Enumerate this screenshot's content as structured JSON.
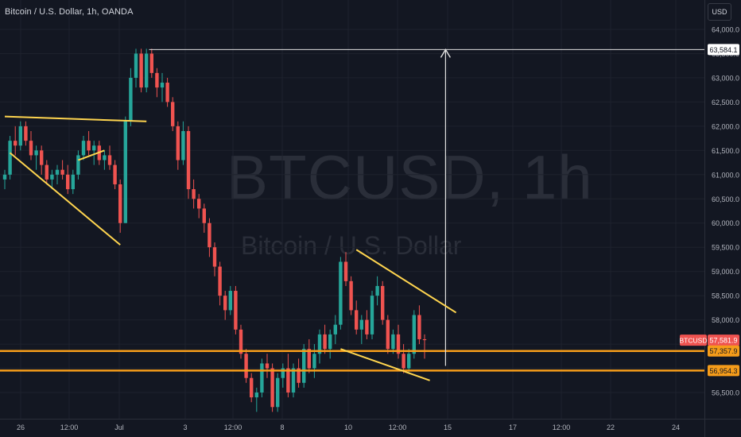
{
  "header": {
    "title": "Bitcoin / U.S. Dollar, 1h, OANDA",
    "currency": "USD"
  },
  "watermark": {
    "symbol": "BTCUSD, 1h",
    "description": "Bitcoin / U.S. Dollar"
  },
  "colors": {
    "background": "#131722",
    "grid": "#1e222d",
    "up": "#26a69a",
    "down": "#ef5350",
    "trendline": "#ffd54f",
    "horizontal_level": "#f59c1a",
    "measure_line": "#e0e0e0",
    "axis_text": "#b2b5be"
  },
  "chart_data": {
    "type": "candlestick",
    "symbol": "BTCUSD",
    "interval": "1h",
    "ylim": [
      56000,
      64500
    ],
    "y_ticks": [
      56500,
      57000,
      57500,
      58000,
      58500,
      59000,
      59500,
      60000,
      60500,
      61000,
      61500,
      62000,
      62500,
      63000,
      63500,
      64000
    ],
    "y_tick_labels": [
      "56,500.0",
      "57,000.0",
      "57,500.0",
      "58,000.0",
      "58,500.0",
      "59,000.0",
      "59,500.0",
      "60,000.0",
      "60,500.0",
      "61,000.0",
      "61,500.0",
      "62,000.0",
      "62,500.0",
      "63,000.0",
      "63,500.0",
      "64,000.0"
    ],
    "x_labels": [
      "26",
      "12:00",
      "Jul",
      "3",
      "12:00",
      "8",
      "10",
      "12:00",
      "15",
      "17",
      "12:00",
      "22",
      "24"
    ],
    "grid": true,
    "last_price": {
      "symbol": "BTCUSD",
      "value": 57581.9,
      "label": "57,581.9"
    },
    "levels": [
      {
        "value": 63584.1,
        "label": "63,584.1",
        "type": "measure_target"
      },
      {
        "value": 57357.9,
        "label": "57,357.9",
        "type": "support"
      },
      {
        "value": 56954.3,
        "label": "56,954.3",
        "type": "support"
      }
    ],
    "trendlines": [
      {
        "x1": 0.0,
        "y1": 62200,
        "x2": 27.0,
        "y2": 62100
      },
      {
        "x1": 1.0,
        "y1": 61450,
        "x2": 22.0,
        "y2": 59550
      },
      {
        "x1": 14.0,
        "y1": 61300,
        "x2": 19.0,
        "y2": 61500
      },
      {
        "x1": 67.0,
        "y1": 59450,
        "x2": 86.0,
        "y2": 58150
      },
      {
        "x1": 64.0,
        "y1": 57400,
        "x2": 81.0,
        "y2": 56750
      }
    ],
    "measure_arrow": {
      "x": 84.0,
      "from": 57050,
      "to": 63584.1,
      "top_from_x": 27.5
    },
    "candles_ohlc": [
      [
        60900,
        61100,
        60700,
        61000
      ],
      [
        61000,
        61800,
        60900,
        61700
      ],
      [
        61700,
        62000,
        61400,
        61600
      ],
      [
        61600,
        62100,
        61500,
        62000
      ],
      [
        62000,
        62100,
        61600,
        61700
      ],
      [
        61700,
        61900,
        61300,
        61400
      ],
      [
        61400,
        61600,
        61100,
        61500
      ],
      [
        61500,
        61600,
        61000,
        61200
      ],
      [
        61200,
        61300,
        60800,
        60900
      ],
      [
        60900,
        61100,
        60700,
        61000
      ],
      [
        61000,
        61200,
        60800,
        61100
      ],
      [
        61100,
        61300,
        60900,
        61000
      ],
      [
        61000,
        61200,
        60600,
        60700
      ],
      [
        60700,
        61100,
        60600,
        61000
      ],
      [
        61000,
        61500,
        60900,
        61400
      ],
      [
        61400,
        61800,
        61300,
        61700
      ],
      [
        61700,
        61900,
        61400,
        61500
      ],
      [
        61500,
        61700,
        61200,
        61600
      ],
      [
        61600,
        61700,
        61200,
        61300
      ],
      [
        61300,
        61500,
        61100,
        61400
      ],
      [
        61400,
        61600,
        61100,
        61200
      ],
      [
        61200,
        61300,
        60700,
        60800
      ],
      [
        60800,
        60900,
        59800,
        60000
      ],
      [
        60000,
        62200,
        60000,
        62100
      ],
      [
        62100,
        63200,
        62000,
        63000
      ],
      [
        63000,
        63600,
        62800,
        63500
      ],
      [
        63500,
        63600,
        62700,
        62800
      ],
      [
        62800,
        63600,
        62700,
        63500
      ],
      [
        63500,
        63600,
        63000,
        63100
      ],
      [
        63100,
        63200,
        62600,
        62800
      ],
      [
        62800,
        63100,
        62500,
        62900
      ],
      [
        62900,
        63000,
        62400,
        62500
      ],
      [
        62500,
        62600,
        61900,
        62000
      ],
      [
        62000,
        62100,
        61100,
        61300
      ],
      [
        61300,
        62100,
        61200,
        61900
      ],
      [
        61900,
        62000,
        60500,
        60700
      ],
      [
        60700,
        60900,
        60300,
        60500
      ],
      [
        60500,
        60600,
        60100,
        60300
      ],
      [
        60300,
        60400,
        59800,
        60000
      ],
      [
        60000,
        60100,
        59300,
        59500
      ],
      [
        59500,
        59600,
        58900,
        59100
      ],
      [
        59100,
        59200,
        58300,
        58500
      ],
      [
        58500,
        58600,
        58000,
        58200
      ],
      [
        58200,
        58700,
        58100,
        58600
      ],
      [
        58600,
        58700,
        57700,
        57800
      ],
      [
        57800,
        57900,
        57200,
        57300
      ],
      [
        57300,
        57400,
        56700,
        56800
      ],
      [
        56800,
        56900,
        56300,
        56400
      ],
      [
        56400,
        56600,
        56100,
        56500
      ],
      [
        56500,
        57200,
        56400,
        57100
      ],
      [
        57100,
        57300,
        56800,
        57000
      ],
      [
        57000,
        57100,
        56100,
        56200
      ],
      [
        56200,
        56900,
        56100,
        56800
      ],
      [
        56800,
        57100,
        56600,
        57000
      ],
      [
        57000,
        57300,
        56400,
        56500
      ],
      [
        56500,
        57100,
        56400,
        57000
      ],
      [
        57000,
        57200,
        56600,
        56700
      ],
      [
        56700,
        57500,
        56600,
        57400
      ],
      [
        57400,
        57600,
        56900,
        57000
      ],
      [
        57000,
        57500,
        56800,
        57300
      ],
      [
        57300,
        57800,
        57100,
        57700
      ],
      [
        57700,
        57900,
        57300,
        57400
      ],
      [
        57400,
        57800,
        57200,
        57700
      ],
      [
        57700,
        58100,
        57500,
        57900
      ],
      [
        57900,
        59300,
        57800,
        59200
      ],
      [
        59200,
        59400,
        58700,
        58800
      ],
      [
        58800,
        58900,
        58100,
        58200
      ],
      [
        58200,
        58400,
        57700,
        57800
      ],
      [
        57800,
        58100,
        57500,
        58000
      ],
      [
        58000,
        58200,
        57600,
        57700
      ],
      [
        57700,
        58600,
        57600,
        58500
      ],
      [
        58500,
        58900,
        58300,
        58700
      ],
      [
        58700,
        58800,
        57900,
        58000
      ],
      [
        58000,
        58100,
        57300,
        57400
      ],
      [
        57400,
        57800,
        57300,
        57700
      ],
      [
        57700,
        57900,
        57200,
        57300
      ],
      [
        57300,
        57500,
        56900,
        57000
      ],
      [
        57000,
        57400,
        56900,
        57300
      ],
      [
        57300,
        58200,
        57200,
        58100
      ],
      [
        58100,
        58300,
        57500,
        57600
      ],
      [
        57600,
        57700,
        57200,
        57582
      ]
    ]
  }
}
